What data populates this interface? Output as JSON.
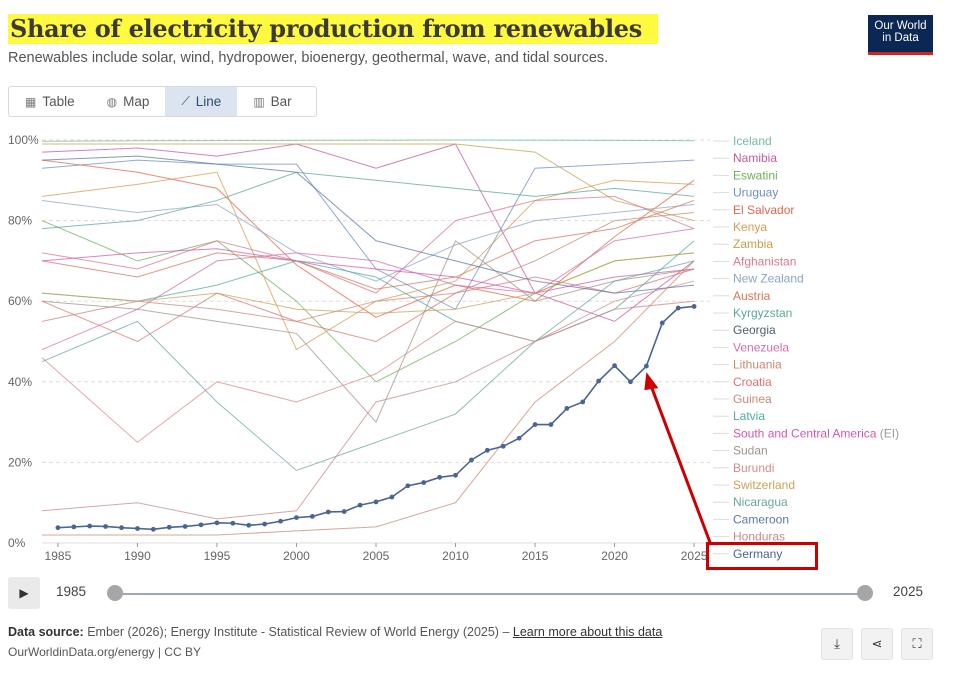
{
  "title": "Share of electricity production from renewables",
  "subtitle": "Renewables include solar, wind, hydropower, bioenergy, geothermal, wave, and tidal sources.",
  "logo": {
    "line1": "Our World",
    "line2": "in Data"
  },
  "tabs": [
    {
      "label": "Table",
      "icon": "table-icon"
    },
    {
      "label": "Map",
      "icon": "globe-icon"
    },
    {
      "label": "Line",
      "icon": "line-chart-icon",
      "active": true
    },
    {
      "label": "Bar",
      "icon": "bar-chart-icon"
    }
  ],
  "timeline": {
    "start": "1985",
    "end": "2025"
  },
  "source": {
    "label": "Data source:",
    "text": "Ember (2026); Energy Institute - Statistical Review of World Energy (2025) –",
    "link": "Learn more about this data"
  },
  "footer_url": "OurWorldinData.org/energy | CC BY",
  "chart_data": {
    "type": "line",
    "title": "Share of electricity production from renewables",
    "xlim": [
      1984,
      2026
    ],
    "ylim": [
      0,
      100
    ],
    "y_ticks": [
      "0%",
      "20%",
      "40%",
      "60%",
      "80%",
      "100%"
    ],
    "x_ticks": [
      "1985",
      "1990",
      "1995",
      "2000",
      "2005",
      "2010",
      "2015",
      "2020",
      "2025"
    ],
    "x_tick_values": [
      1985,
      1990,
      1995,
      2000,
      2005,
      2010,
      2015,
      2020,
      2025
    ],
    "y_tick_values": [
      0,
      20,
      40,
      60,
      80,
      100
    ],
    "legend": [
      {
        "name": "Iceland",
        "color": "#6fbf9e"
      },
      {
        "name": "Namibia",
        "color": "#c25a9a"
      },
      {
        "name": "Eswatini",
        "color": "#6fae5a"
      },
      {
        "name": "Uruguay",
        "color": "#6b8fc4"
      },
      {
        "name": "El Salvador",
        "color": "#e0674f"
      },
      {
        "name": "Kenya",
        "color": "#d99a4f"
      },
      {
        "name": "Zambia",
        "color": "#c6a04a"
      },
      {
        "name": "Afghanistan",
        "color": "#d77a8c"
      },
      {
        "name": "New Zealand",
        "color": "#8ea5c8"
      },
      {
        "name": "Austria",
        "color": "#d27a5a"
      },
      {
        "name": "Kyrgyzstan",
        "color": "#5aa79a"
      },
      {
        "name": "Georgia",
        "color": "#4b5f7a"
      },
      {
        "name": "Venezuela",
        "color": "#d070b0"
      },
      {
        "name": "Lithuania",
        "color": "#c88a72"
      },
      {
        "name": "Croatia",
        "color": "#e07070"
      },
      {
        "name": "Guinea",
        "color": "#c98a7a"
      },
      {
        "name": "Latvia",
        "color": "#4fae9e"
      },
      {
        "name": "South and Central America",
        "suffix": "(EI)",
        "color": "#d05ab0"
      },
      {
        "name": "Sudan",
        "color": "#a0948a"
      },
      {
        "name": "Burundi",
        "color": "#d88a8a"
      },
      {
        "name": "Switzerland",
        "color": "#c9a35a"
      },
      {
        "name": "Nicaragua",
        "color": "#6aa6a0"
      },
      {
        "name": "Cameroon",
        "color": "#5a7aa0"
      },
      {
        "name": "Honduras",
        "color": "#c78a8a"
      },
      {
        "name": "Germany",
        "color": "#4a6591",
        "highlighted": true
      }
    ],
    "series": [
      {
        "name": "Germany",
        "x": [
          1985,
          1986,
          1987,
          1988,
          1989,
          1990,
          1991,
          1992,
          1993,
          1994,
          1995,
          1996,
          1997,
          1998,
          1999,
          2000,
          2001,
          2002,
          2003,
          2004,
          2005,
          2006,
          2007,
          2008,
          2009,
          2010,
          2011,
          2012,
          2013,
          2014,
          2015,
          2016,
          2017,
          2018,
          2019,
          2020,
          2021,
          2022,
          2023,
          2024,
          2025
        ],
        "values": [
          3.8,
          4.0,
          4.2,
          4.1,
          3.8,
          3.6,
          3.4,
          3.9,
          4.1,
          4.5,
          5.0,
          4.9,
          4.4,
          4.7,
          5.4,
          6.3,
          6.6,
          7.7,
          7.8,
          9.4,
          10.2,
          11.4,
          14.2,
          15.0,
          16.3,
          16.8,
          20.6,
          23.0,
          24.0,
          26.0,
          29.4,
          29.4,
          33.4,
          35.0,
          40.2,
          44.0,
          40.0,
          43.9,
          54.6,
          58.3,
          58.7
        ]
      },
      {
        "name": "Iceland",
        "x": [
          1984,
          1990,
          2000,
          2010,
          2020,
          2025
        ],
        "values": [
          99.7,
          99.8,
          99.9,
          100,
          99.9,
          99.8
        ]
      },
      {
        "name": "Namibia",
        "x": [
          1984,
          1990,
          1995,
          2000,
          2005,
          2010,
          2015,
          2020,
          2025
        ],
        "values": [
          97,
          98,
          96,
          99,
          93,
          99,
          62,
          55,
          70
        ]
      },
      {
        "name": "Eswatini",
        "x": [
          1984,
          1990,
          1995,
          2000,
          2005,
          2010,
          2015,
          2020,
          2025
        ],
        "values": [
          80,
          70,
          75,
          60,
          40,
          50,
          62,
          70,
          72
        ]
      },
      {
        "name": "Uruguay",
        "x": [
          1984,
          1990,
          1995,
          2000,
          2005,
          2010,
          2015,
          2020,
          2025
        ],
        "values": [
          93,
          95,
          94,
          94,
          68,
          58,
          93,
          94,
          95
        ]
      },
      {
        "name": "El Salvador",
        "x": [
          1984,
          1990,
          1995,
          2000,
          2005,
          2010,
          2015,
          2020,
          2025
        ],
        "values": [
          95,
          92,
          88,
          69,
          56,
          64,
          60,
          76,
          90
        ]
      },
      {
        "name": "Kenya",
        "x": [
          1984,
          1990,
          1995,
          2000,
          2005,
          2010,
          2015,
          2020,
          2025
        ],
        "values": [
          86,
          89,
          92,
          48,
          60,
          65,
          85,
          90,
          89
        ]
      },
      {
        "name": "Zambia",
        "x": [
          1984,
          1990,
          1995,
          2000,
          2005,
          2010,
          2015,
          2020,
          2025
        ],
        "values": [
          99,
          99,
          99,
          99,
          99,
          99,
          97,
          85,
          80
        ]
      },
      {
        "name": "Afghanistan",
        "x": [
          1984,
          1990,
          1995,
          2000,
          2005,
          2010,
          2015,
          2020,
          2025
        ],
        "values": [
          72,
          68,
          75,
          70,
          62,
          80,
          85,
          86,
          78
        ]
      },
      {
        "name": "New Zealand",
        "x": [
          1984,
          1990,
          1995,
          2000,
          2005,
          2010,
          2015,
          2020,
          2025
        ],
        "values": [
          85,
          82,
          84,
          72,
          65,
          74,
          80,
          82,
          84
        ]
      },
      {
        "name": "Austria",
        "x": [
          1984,
          1990,
          1995,
          2000,
          2005,
          2010,
          2015,
          2020,
          2025
        ],
        "values": [
          70,
          66,
          72,
          70,
          63,
          66,
          75,
          78,
          85
        ]
      },
      {
        "name": "Kyrgyzstan",
        "x": [
          1984,
          1990,
          1995,
          2000,
          2005,
          2010,
          2015,
          2020,
          2025
        ],
        "values": [
          78,
          80,
          85,
          92,
          90,
          88,
          86,
          88,
          86
        ]
      },
      {
        "name": "Venezuela",
        "x": [
          1984,
          1990,
          1995,
          2000,
          2005,
          2010,
          2015,
          2020,
          2025
        ],
        "values": [
          48,
          58,
          70,
          72,
          70,
          64,
          62,
          75,
          78
        ]
      },
      {
        "name": "Lithuania",
        "x": [
          1984,
          1990,
          1995,
          2000,
          2005,
          2010,
          2015,
          2020,
          2025
        ],
        "values": [
          2,
          2,
          2,
          3,
          4,
          10,
          35,
          50,
          70
        ]
      },
      {
        "name": "Croatia",
        "x": [
          1984,
          1990,
          1995,
          2000,
          2005,
          2010,
          2015,
          2020,
          2025
        ],
        "values": [
          60,
          50,
          62,
          55,
          50,
          62,
          66,
          62,
          68
        ]
      },
      {
        "name": "Guinea",
        "x": [
          1984,
          1990,
          1995,
          2000,
          2005,
          2010,
          2015,
          2020,
          2025
        ],
        "values": [
          55,
          60,
          58,
          55,
          60,
          62,
          70,
          80,
          82
        ]
      },
      {
        "name": "Latvia",
        "x": [
          1984,
          1990,
          1995,
          2000,
          2005,
          2010,
          2015,
          2020,
          2025
        ],
        "values": [
          62,
          60,
          64,
          70,
          66,
          55,
          50,
          58,
          75
        ]
      },
      {
        "name": "South and Central America (EI)",
        "x": [
          1984,
          1990,
          1995,
          2000,
          2005,
          2010,
          2015,
          2020,
          2025
        ],
        "values": [
          70,
          72,
          73,
          70,
          68,
          66,
          62,
          66,
          68
        ]
      },
      {
        "name": "Sudan",
        "x": [
          1984,
          1990,
          1995,
          2000,
          2005,
          2010,
          2015,
          2020,
          2025
        ],
        "values": [
          60,
          58,
          55,
          52,
          30,
          75,
          60,
          65,
          68
        ]
      },
      {
        "name": "Burundi",
        "x": [
          1984,
          1990,
          1995,
          2000,
          2005,
          2010,
          2015,
          2020,
          2025
        ],
        "values": [
          46,
          25,
          40,
          35,
          42,
          55,
          50,
          60,
          65
        ]
      },
      {
        "name": "Switzerland",
        "x": [
          1984,
          1990,
          1995,
          2000,
          2005,
          2010,
          2015,
          2020,
          2025
        ],
        "values": [
          62,
          60,
          62,
          58,
          57,
          58,
          62,
          70,
          72
        ]
      },
      {
        "name": "Nicaragua",
        "x": [
          1984,
          1990,
          1995,
          2000,
          2005,
          2010,
          2015,
          2020,
          2025
        ],
        "values": [
          45,
          55,
          35,
          18,
          25,
          32,
          50,
          65,
          70
        ]
      },
      {
        "name": "Cameroon",
        "x": [
          1984,
          1990,
          1995,
          2000,
          2005,
          2010,
          2015,
          2020,
          2025
        ],
        "values": [
          95,
          96,
          94,
          92,
          75,
          70,
          65,
          62,
          64
        ]
      },
      {
        "name": "Honduras",
        "x": [
          1984,
          1990,
          1995,
          2000,
          2005,
          2010,
          2015,
          2020,
          2025
        ],
        "values": [
          8,
          10,
          6,
          8,
          35,
          40,
          50,
          58,
          60
        ]
      }
    ]
  }
}
